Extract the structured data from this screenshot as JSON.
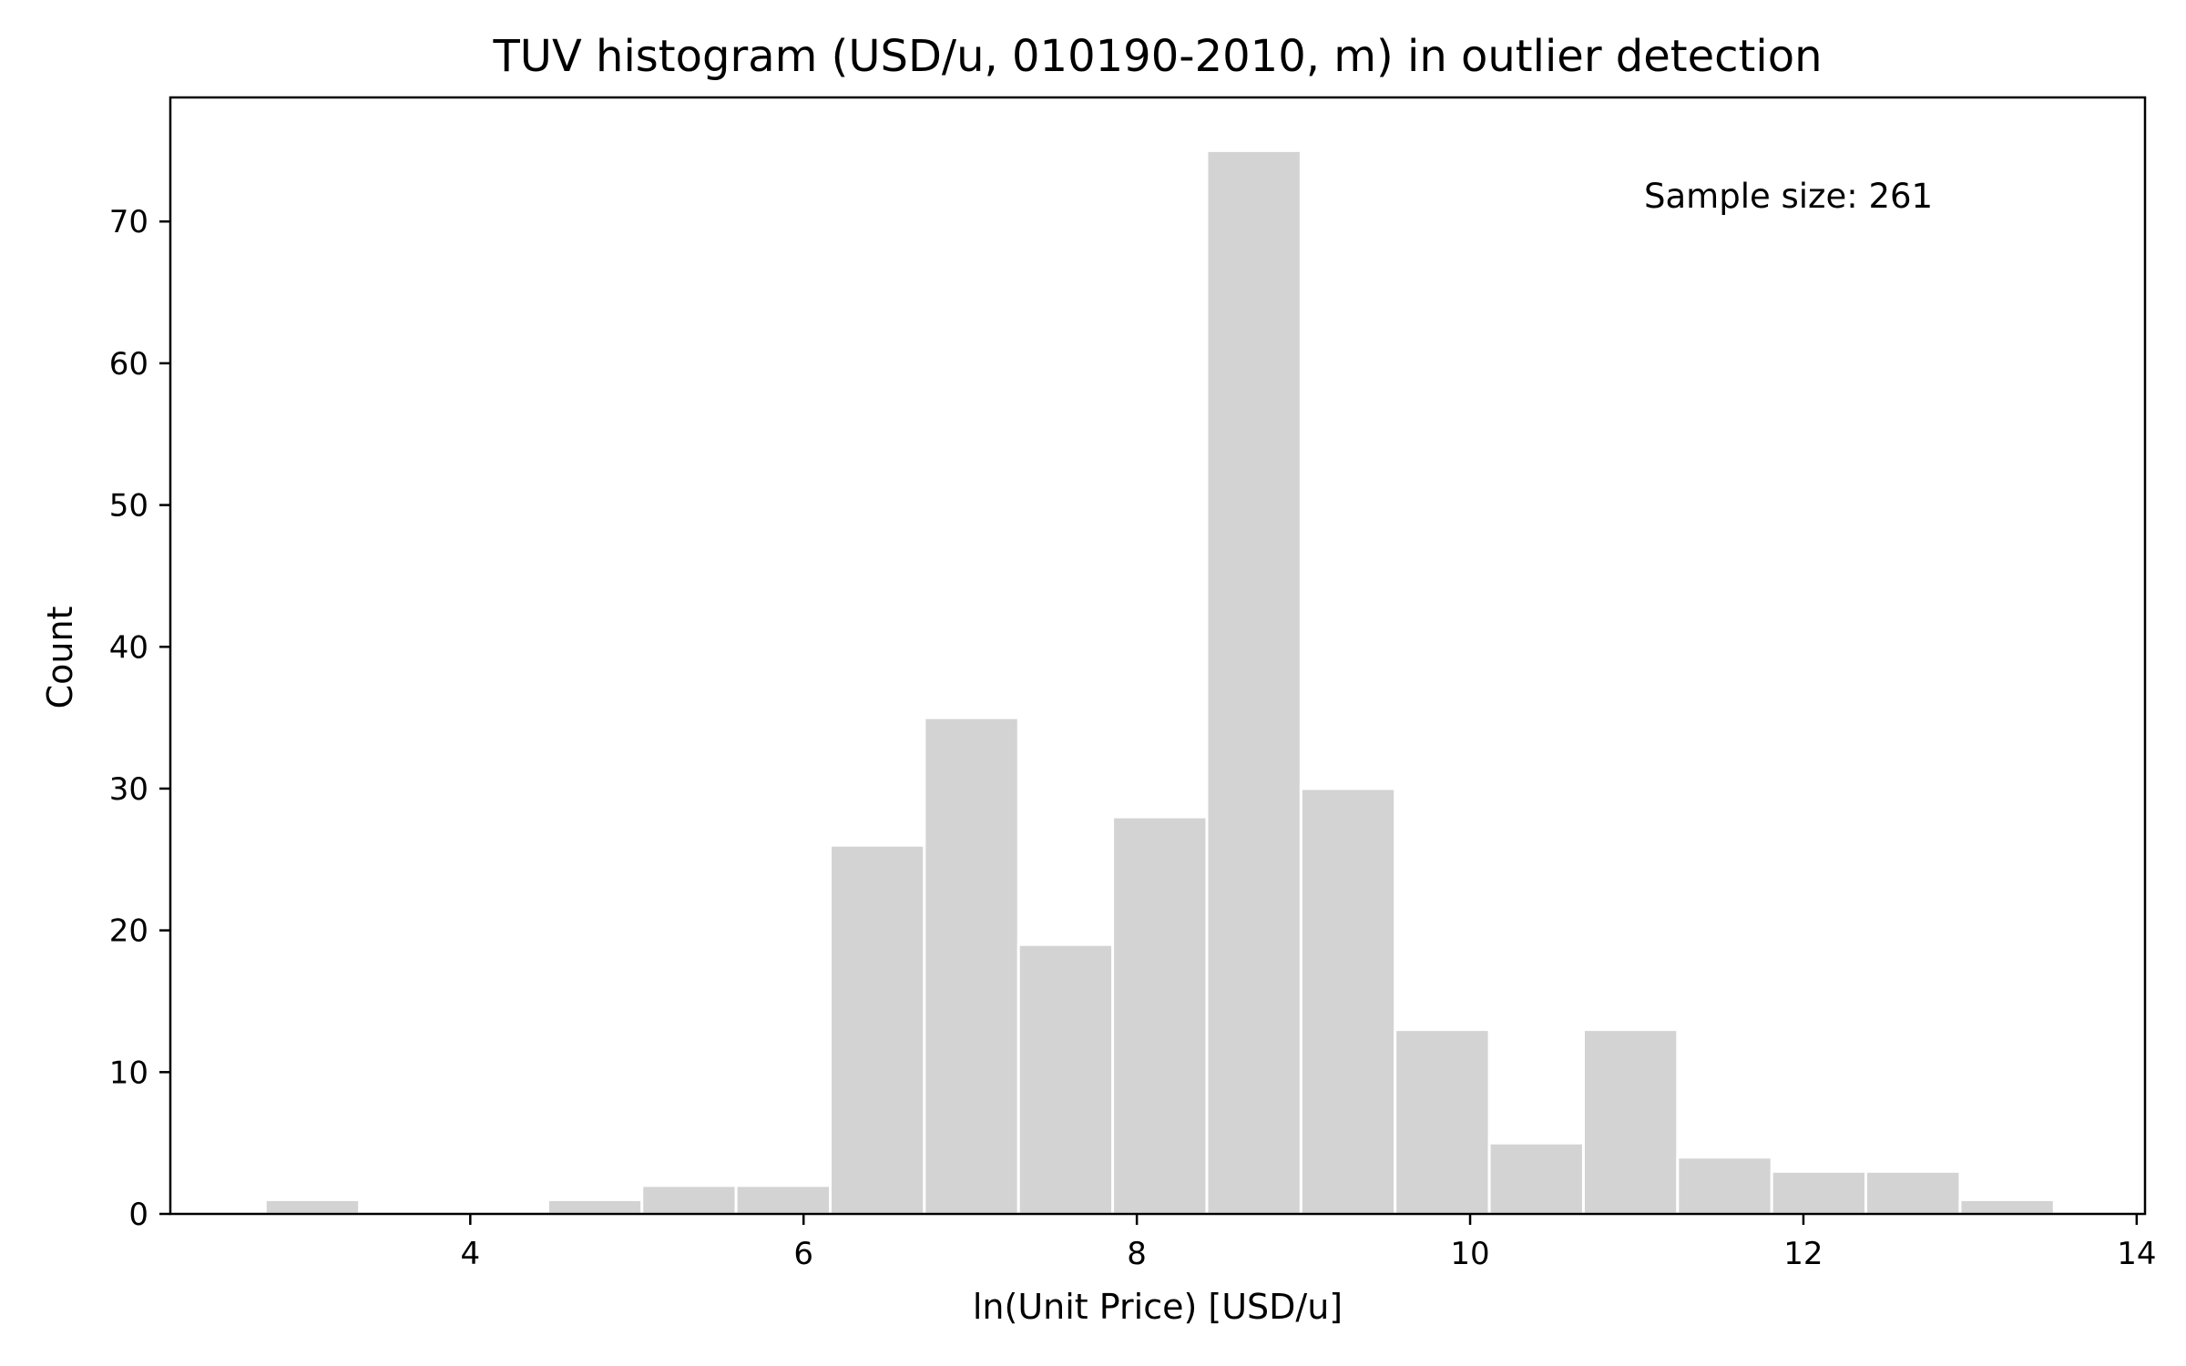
{
  "chart_data": {
    "type": "bar",
    "title": "TUV histogram (USD/u, 010190-2010, m) in outlier detection",
    "xlabel": "ln(Unit Price) [USD/u]",
    "ylabel": "Count",
    "annotation": "Sample size: 261",
    "xlim": [
      2.2,
      14.05
    ],
    "ylim": [
      0,
      78.75
    ],
    "xticks": [
      4,
      6,
      8,
      10,
      12,
      14
    ],
    "yticks": [
      0,
      10,
      20,
      30,
      40,
      50,
      60,
      70
    ],
    "bar_color": "#d3d3d3",
    "bin_edges": [
      2.77,
      3.335,
      3.9,
      4.465,
      5.03,
      5.595,
      6.16,
      6.725,
      7.29,
      7.855,
      8.42,
      8.985,
      9.55,
      10.115,
      10.68,
      11.245,
      11.81,
      12.375,
      12.94,
      13.505
    ],
    "values": [
      1,
      0,
      0,
      1,
      2,
      2,
      26,
      35,
      19,
      28,
      75,
      30,
      13,
      5,
      13,
      4,
      3,
      3,
      1
    ],
    "grid": false,
    "legend": "none"
  }
}
